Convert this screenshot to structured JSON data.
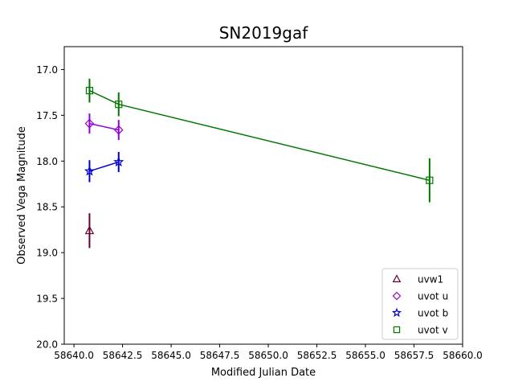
{
  "chart_data": {
    "type": "scatter",
    "title": "SN2019gaf",
    "xlabel": "Modified Julian Date",
    "ylabel": "Observed Vega Magnitude",
    "xlim": [
      58639.5,
      58660.0
    ],
    "ylim": [
      20.0,
      16.75
    ],
    "y_inverted": true,
    "grid": false,
    "legend_position": "lower-right",
    "xticks": [
      58640.0,
      58642.5,
      58645.0,
      58647.5,
      58650.0,
      58652.5,
      58655.0,
      58657.5,
      58660.0
    ],
    "xtick_labels": [
      "58640.0",
      "58642.5",
      "58645.0",
      "58647.5",
      "58650.0",
      "58652.5",
      "58655.0",
      "58657.5",
      "58660.0"
    ],
    "yticks": [
      17.0,
      17.5,
      18.0,
      18.5,
      19.0,
      19.5,
      20.0
    ],
    "ytick_labels": [
      "17.0",
      "17.5",
      "18.0",
      "18.5",
      "19.0",
      "19.5",
      "20.0"
    ],
    "series": [
      {
        "name": "uvw1",
        "color": "#660033",
        "marker": "triangle",
        "points": [
          {
            "x": 58640.8,
            "y": 18.76,
            "err": 0.19
          }
        ]
      },
      {
        "name": "uvot u",
        "color": "#9400d3",
        "marker": "diamond",
        "points": [
          {
            "x": 58640.8,
            "y": 17.59,
            "err": 0.11
          },
          {
            "x": 58642.3,
            "y": 17.66,
            "err": 0.11
          }
        ]
      },
      {
        "name": "uvot b",
        "color": "#0000cc",
        "marker": "star",
        "points": [
          {
            "x": 58640.8,
            "y": 18.11,
            "err": 0.12
          },
          {
            "x": 58642.3,
            "y": 18.01,
            "err": 0.11
          }
        ]
      },
      {
        "name": "uvot v",
        "color": "#007700",
        "marker": "square",
        "points": [
          {
            "x": 58640.8,
            "y": 17.23,
            "err": 0.13
          },
          {
            "x": 58642.3,
            "y": 17.38,
            "err": 0.13
          },
          {
            "x": 58658.3,
            "y": 18.21,
            "err": 0.24
          }
        ]
      }
    ]
  }
}
